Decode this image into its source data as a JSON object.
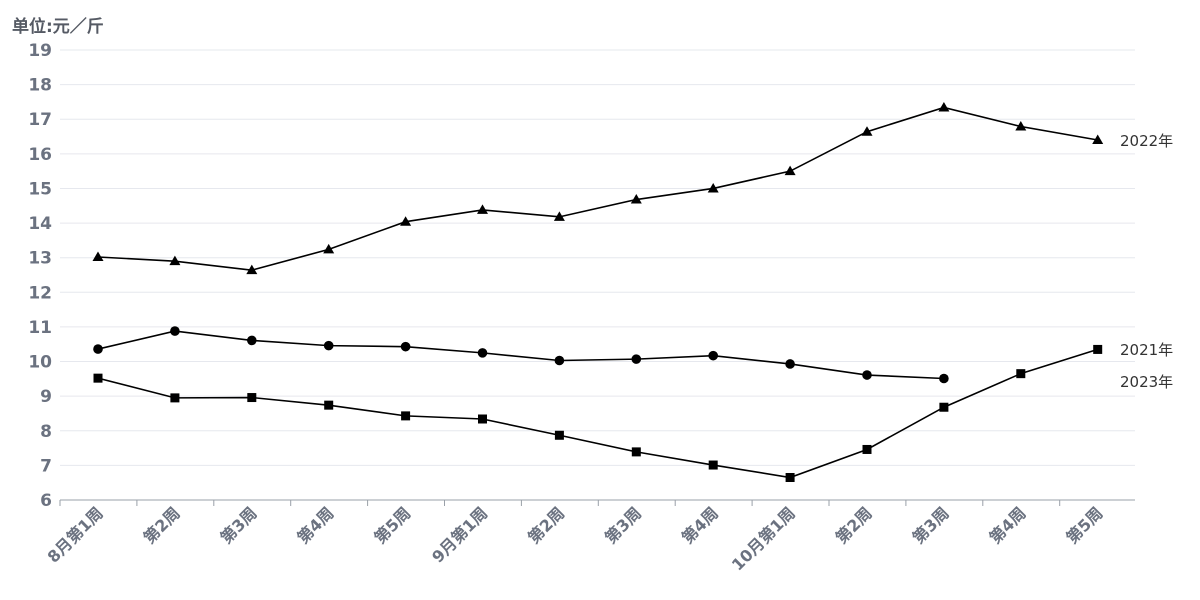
{
  "chart_data": {
    "type": "line",
    "unit_label": "单位:元／斤",
    "categories": [
      "8月第1周",
      "第2周",
      "第3周",
      "第4周",
      "第5周",
      "9月第1周",
      "第2周",
      "第3周",
      "第4周",
      "10月第1周",
      "第2周",
      "第3周",
      "第4周",
      "第5周"
    ],
    "ylim": [
      6,
      19
    ],
    "yticks": [
      6,
      7,
      8,
      9,
      10,
      11,
      12,
      13,
      14,
      15,
      16,
      17,
      18,
      19
    ],
    "grid": true,
    "series": [
      {
        "name": "2022年",
        "marker": "triangle",
        "color": "#000000",
        "values": [
          13.02,
          12.9,
          12.64,
          13.24,
          14.04,
          14.38,
          14.18,
          14.68,
          15.0,
          15.5,
          16.64,
          17.34,
          16.79,
          16.4
        ]
      },
      {
        "name": "2021年",
        "marker": "circle",
        "color": "#000000",
        "values": [
          10.36,
          10.88,
          10.61,
          10.46,
          10.43,
          10.25,
          10.03,
          10.07,
          10.17,
          9.93,
          9.61,
          9.51,
          null,
          null
        ]
      },
      {
        "name": "2023年",
        "marker": "square",
        "color": "#000000",
        "values": [
          9.52,
          8.95,
          8.96,
          8.74,
          8.43,
          8.34,
          7.87,
          7.39,
          7.01,
          6.65,
          7.46,
          8.68,
          9.65,
          10.35
        ]
      }
    ]
  }
}
